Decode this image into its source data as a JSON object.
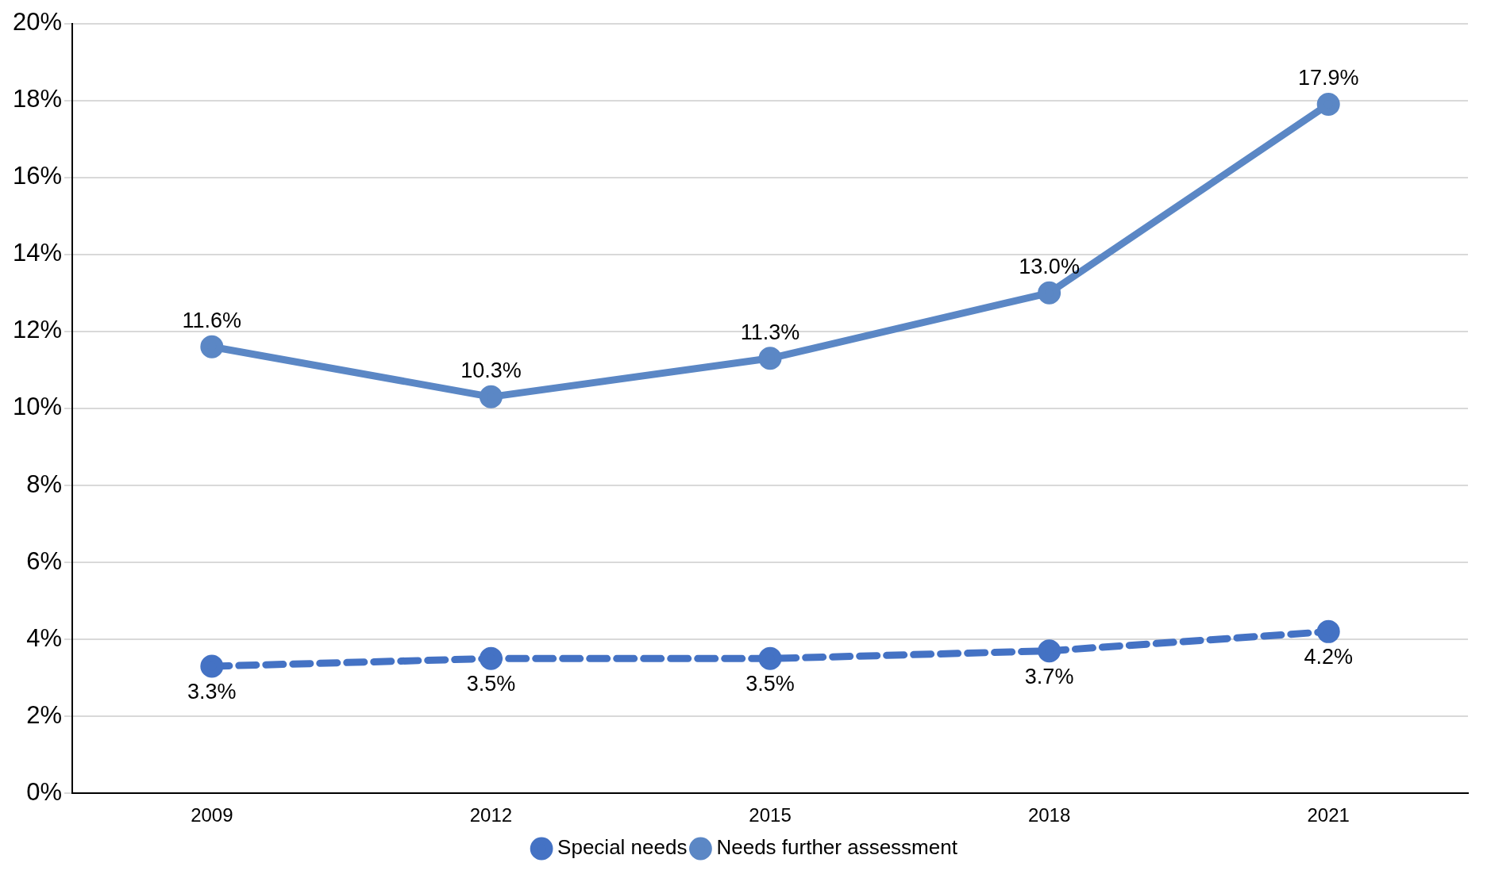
{
  "chart_data": {
    "type": "line",
    "categories": [
      "2009",
      "2012",
      "2015",
      "2018",
      "2021"
    ],
    "series": [
      {
        "name": "Special needs",
        "color": "#4472c4",
        "line_style": "dashed",
        "values": [
          3.3,
          3.5,
          3.5,
          3.7,
          4.2
        ],
        "value_labels": [
          "3.3%",
          "3.5%",
          "3.5%",
          "3.7%",
          "4.2%"
        ]
      },
      {
        "name": "Needs further assessment",
        "color": "#5b87c5",
        "line_style": "solid",
        "values": [
          11.6,
          10.3,
          11.3,
          13.0,
          17.9
        ],
        "value_labels": [
          "11.6%",
          "10.3%",
          "11.3%",
          "13.0%",
          "17.9%"
        ]
      }
    ],
    "ylim": [
      0,
      20
    ],
    "yticks": [
      {
        "value": 0,
        "label": "0%"
      },
      {
        "value": 2,
        "label": "2%"
      },
      {
        "value": 4,
        "label": "4%"
      },
      {
        "value": 6,
        "label": "6%"
      },
      {
        "value": 8,
        "label": "8%"
      },
      {
        "value": 10,
        "label": "10%"
      },
      {
        "value": 12,
        "label": "12%"
      },
      {
        "value": 14,
        "label": "14%"
      },
      {
        "value": 16,
        "label": "16%"
      },
      {
        "value": 18,
        "label": "18%"
      },
      {
        "value": 20,
        "label": "20%"
      }
    ],
    "grid": "y",
    "legend": "bottom",
    "marker": "circle"
  }
}
